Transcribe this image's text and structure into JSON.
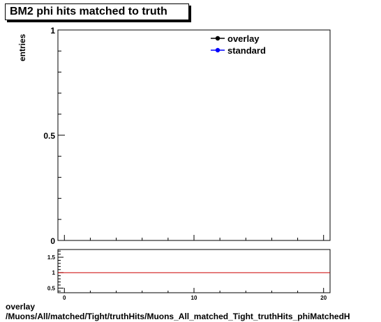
{
  "title": "BM2 phi hits matched to truth",
  "footer": {
    "line1": "overlay",
    "line2": "/Muons/All/matched/Tight/truthHits/Muons_All_matched_Tight_truthHits_phiMatchedH"
  },
  "chart_data": [
    {
      "type": "line",
      "ylabel": "entries",
      "xlim": [
        -0.5,
        20.5
      ],
      "ylim": [
        0,
        1
      ],
      "y_ticks": [
        {
          "v": 0,
          "label": "0"
        },
        {
          "v": 0.5,
          "label": "0.5"
        },
        {
          "v": 1,
          "label": "1"
        }
      ],
      "series": [
        {
          "name": "overlay",
          "color": "#000000",
          "x": [],
          "y": []
        },
        {
          "name": "standard",
          "color": "#0000ff",
          "x": [],
          "y": []
        }
      ],
      "legend": "top-right"
    },
    {
      "type": "line",
      "xlim": [
        -0.5,
        20.5
      ],
      "ylim": [
        0.35,
        1.75
      ],
      "x_ticks": [
        {
          "v": 0,
          "label": "0"
        },
        {
          "v": 10,
          "label": "10"
        },
        {
          "v": 20,
          "label": "20"
        }
      ],
      "y_ticks": [
        {
          "v": 0.5,
          "label": "0.5"
        },
        {
          "v": 1,
          "label": "1"
        },
        {
          "v": 1.5,
          "label": "1.5"
        }
      ],
      "reference_line": {
        "y": 1,
        "color": "#cc0000"
      }
    }
  ]
}
